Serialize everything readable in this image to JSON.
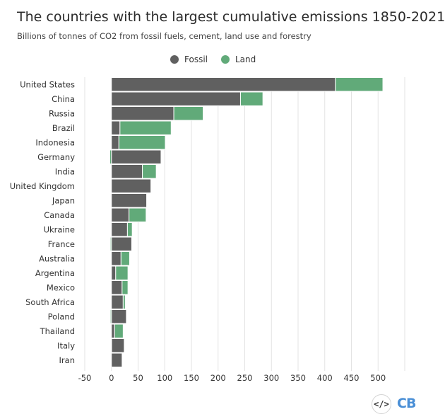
{
  "chart_data": {
    "type": "bar",
    "orientation": "horizontal",
    "stacked": true,
    "title": "The countries with the largest cumulative emissions 1850-2021",
    "subtitle": "Billions of tonnes of CO2 from fossil fuels, cement, land use and forestry",
    "categories": [
      "United States",
      "China",
      "Russia",
      "Brazil",
      "Indonesia",
      "Germany",
      "India",
      "United Kingdom",
      "Japan",
      "Canada",
      "Ukraine",
      "France",
      "Australia",
      "Argentina",
      "Mexico",
      "South Africa",
      "Poland",
      "Thailand",
      "Italy",
      "Iran"
    ],
    "series": [
      {
        "name": "Fossil",
        "color": "#606060",
        "values": [
          420,
          242,
          117,
          16,
          14,
          93,
          58,
          74,
          66,
          33,
          30,
          38,
          18,
          8,
          20,
          22,
          28,
          6,
          24,
          20
        ]
      },
      {
        "name": "Land",
        "color": "#61aa79",
        "values": [
          89,
          42,
          55,
          96,
          87,
          -3,
          26,
          0,
          0,
          32,
          9,
          -2,
          16,
          23,
          11,
          4,
          -2,
          16,
          -1,
          0
        ]
      }
    ],
    "xlim": [
      -50,
      550
    ],
    "xticks": [
      -50,
      0,
      50,
      100,
      150,
      200,
      250,
      300,
      350,
      400,
      450,
      500
    ],
    "grid": true,
    "legend": "top-center"
  },
  "footer": {
    "embed_icon": "</>",
    "logo_text": "CB"
  }
}
